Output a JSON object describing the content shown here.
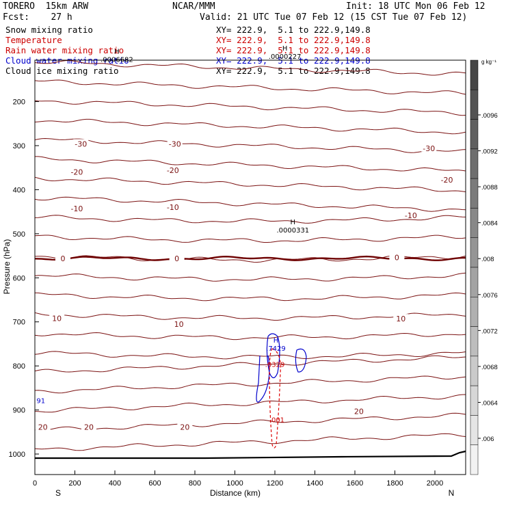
{
  "header": {
    "model": "TORERO  15km ARW",
    "center": "NCAR/MMM",
    "init": "Init: 18 UTC Mon 06 Feb 12",
    "fcst": "Fcst:    27 h",
    "valid": "Valid: 21 UTC Tue 07 Feb 12 (15 CST Tue 07 Feb 12)"
  },
  "fields": [
    {
      "name": "Snow mixing ratio",
      "xy": "XY= 222.9,  5.1 to 222.9,149.8",
      "color": "#000000"
    },
    {
      "name": "Temperature",
      "xy": "XY= 222.9,  5.1 to 222.9,149.8",
      "color": "#cc0000"
    },
    {
      "name": "Rain water mixing ratio",
      "xy": "XY= 222.9,  5.1 to 222.9,149.8",
      "color": "#cc0000"
    },
    {
      "name": "Cloud water mixing ratio",
      "xy": "XY= 222.9,  5.1 to 222.9,149.8",
      "color": "#0000cc"
    },
    {
      "name": "Cloud ice mixing ratio",
      "xy": "XY= 222.9,  5.1 to 222.9,149.8",
      "color": "#000000"
    }
  ],
  "colors": {
    "temperature": "#7a1010",
    "zero_line": "#6e0000",
    "rain": "#dd0000",
    "cloud_water": "#0000cc",
    "ground": "#000000"
  },
  "chart_data": {
    "type": "contour",
    "xlabel": "Distance (km)",
    "ylabel": "Pressure (hPa)",
    "x_ticks": [
      0,
      200,
      400,
      600,
      800,
      1000,
      1200,
      1400,
      1600,
      1800,
      2000
    ],
    "xlim": [
      0,
      2160
    ],
    "y_ticks": [
      200,
      300,
      400,
      500,
      600,
      700,
      800,
      900,
      1000
    ],
    "ylim": [
      1050,
      100
    ],
    "y_scale": "linear",
    "x_end_labels": {
      "left": "S",
      "right": "N"
    },
    "colorbar": {
      "unit": "g kg⁻¹",
      "ticks": [
        ".006",
        ".0064",
        ".0068",
        ".0072",
        ".0076",
        ".008",
        ".0084",
        ".0088",
        ".0092",
        ".0096"
      ]
    },
    "temperature_labels": [
      {
        "text": "-30",
        "x": 230,
        "p": 296
      },
      {
        "text": "-30",
        "x": 700,
        "p": 296
      },
      {
        "text": "-30",
        "x": 1970,
        "p": 306
      },
      {
        "text": "-20",
        "x": 210,
        "p": 360
      },
      {
        "text": "-20",
        "x": 690,
        "p": 356
      },
      {
        "text": "-20",
        "x": 2060,
        "p": 378
      },
      {
        "text": "-10",
        "x": 210,
        "p": 443
      },
      {
        "text": "-10",
        "x": 690,
        "p": 440
      },
      {
        "text": "-10",
        "x": 1880,
        "p": 458
      },
      {
        "text": "0",
        "x": 140,
        "p": 556
      },
      {
        "text": "0",
        "x": 710,
        "p": 556
      },
      {
        "text": "0",
        "x": 1810,
        "p": 554
      },
      {
        "text": "10",
        "x": 110,
        "p": 692
      },
      {
        "text": "10",
        "x": 720,
        "p": 705
      },
      {
        "text": "10",
        "x": 1830,
        "p": 693
      },
      {
        "text": "20",
        "x": 40,
        "p": 939
      },
      {
        "text": "20",
        "x": 270,
        "p": 939
      },
      {
        "text": "20",
        "x": 750,
        "p": 939
      },
      {
        "text": "20",
        "x": 1620,
        "p": 903
      }
    ],
    "max_labels": [
      {
        "letter": "H",
        "value": ".0006682",
        "x": 410,
        "p": 110,
        "color": "#000000"
      },
      {
        "letter": "H",
        "value": ".0000227",
        "x": 1250,
        "p": 103,
        "color": "#000000"
      },
      {
        "letter": "H",
        "value": ".0000331",
        "x": 1290,
        "p": 497,
        "color": "#000000"
      },
      {
        "letter": "H",
        "value": ".7429",
        "x": 1205,
        "p": 766,
        "color": "#0000cc"
      },
      {
        "letter": "",
        "value": ".0329",
        "x": 1200,
        "p": 802,
        "color": "#cc0000"
      },
      {
        "letter": "",
        "value": ".001",
        "x": 1210,
        "p": 928,
        "color": "#cc0000"
      },
      {
        "letter": "",
        "value": "91",
        "x": 30,
        "p": 884,
        "color": "#0000cc"
      }
    ]
  }
}
